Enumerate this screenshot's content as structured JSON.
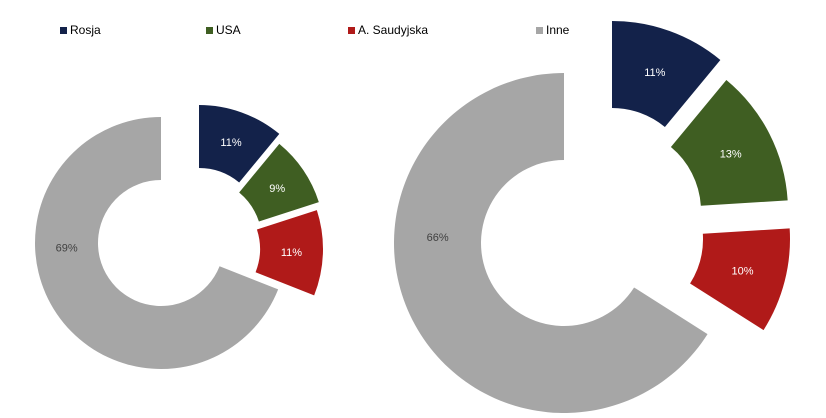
{
  "chart_data": {
    "type": "pie",
    "legend_position": "top",
    "series_names": [
      "Rosja",
      "USA",
      "A. Saudyjska",
      "Inne"
    ],
    "colors": [
      "#13224a",
      "#3f5e22",
      "#b01a19",
      "#a6a6a6"
    ],
    "charts": [
      {
        "values": [
          11,
          9,
          11,
          69
        ],
        "labels": [
          "11%",
          "9%",
          "11%",
          "69%"
        ]
      },
      {
        "values": [
          11,
          13,
          10,
          66
        ],
        "labels": [
          "11%",
          "13%",
          "10%",
          "66%"
        ]
      }
    ]
  }
}
